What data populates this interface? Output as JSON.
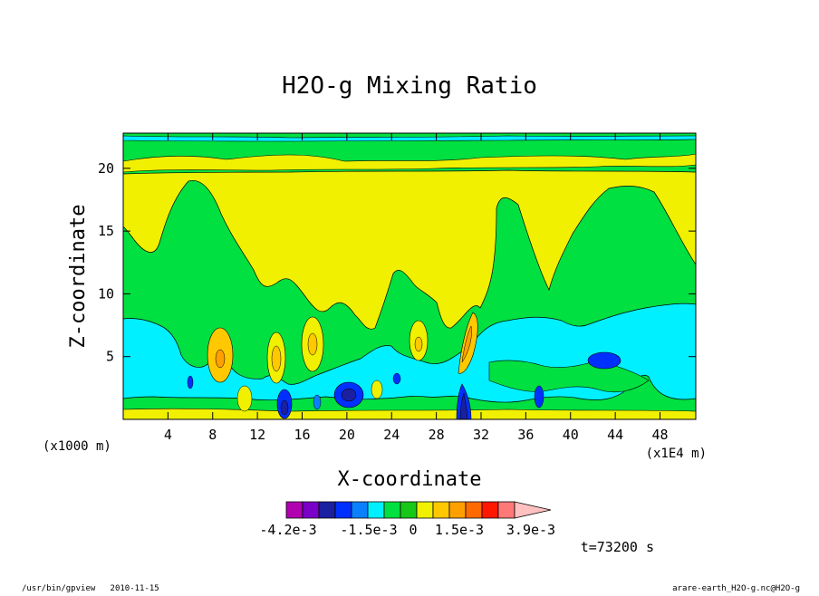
{
  "chart_data": {
    "type": "heatmap",
    "title": "H2O-g Mixing Ratio",
    "xlabel": "X-coordinate",
    "ylabel": "Z-coordinate",
    "x_unit_left": "(x1000 m)",
    "x_unit_right": "(x1E4 m)",
    "xlim": [
      0,
      51.2
    ],
    "ylim": [
      0,
      22.8
    ],
    "x_ticks": [
      4,
      8,
      12,
      16,
      20,
      24,
      28,
      32,
      36,
      40,
      44,
      48
    ],
    "y_ticks": [
      5,
      10,
      15,
      20
    ],
    "colorbar": {
      "colors": [
        "#b000b0",
        "#7a00c8",
        "#1a20a0",
        "#0030ff",
        "#0a80ff",
        "#00f0ff",
        "#00e040",
        "#18c818",
        "#f0f000",
        "#ffc800",
        "#ffa000",
        "#ff6a00",
        "#ff1800",
        "#ff7878",
        "#ffc0c0"
      ],
      "labels": [
        "-4.2e-3",
        "-1.5e-3",
        "0",
        "1.5e-3",
        "3.9e-3"
      ]
    },
    "time_label": "t=73200 s"
  },
  "footer": {
    "left": "/usr/bin/gpview   2010-11-15",
    "right": "arare-earth_H2O-g.nc@H2O-g"
  },
  "colors": {
    "green": "#00e040",
    "yellow": "#f0f000",
    "cyan": "#00f0ff",
    "dkgreen": "#18c818",
    "orange": "#ffc800",
    "blue": "#0030ff",
    "navy": "#1a20a0"
  }
}
